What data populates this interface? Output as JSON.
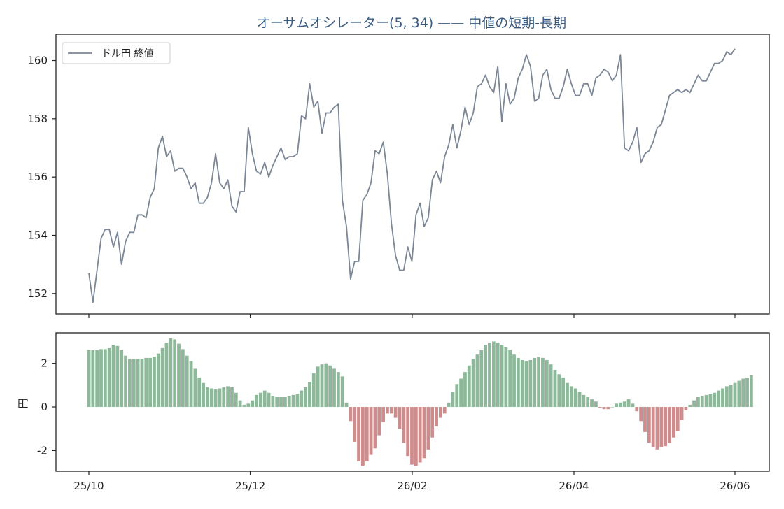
{
  "chart_data": [
    {
      "type": "line",
      "title": "オーサムオシレーター(5, 34) —— 中値の短期-長期",
      "legend": {
        "position": "top-left",
        "entries": [
          "ドル円 終値"
        ]
      },
      "ylim": [
        151.3,
        160.9
      ],
      "yticks": [
        "152",
        "154",
        "156",
        "158",
        "160"
      ],
      "series": [
        {
          "name": "ドル円 終値",
          "color": "#7b8696",
          "values": [
            152.7,
            151.7,
            152.8,
            153.9,
            154.2,
            154.2,
            153.6,
            154.1,
            153.0,
            153.8,
            154.1,
            154.1,
            154.7,
            154.7,
            154.6,
            155.3,
            155.6,
            157.0,
            157.4,
            156.7,
            156.9,
            156.2,
            156.3,
            156.3,
            156.0,
            155.6,
            155.8,
            155.1,
            155.1,
            155.3,
            155.8,
            156.8,
            155.8,
            155.6,
            155.9,
            155.0,
            154.8,
            155.5,
            155.5,
            157.7,
            156.8,
            156.2,
            156.1,
            156.5,
            156.0,
            156.4,
            156.7,
            157.0,
            156.6,
            156.7,
            156.7,
            156.8,
            158.1,
            158.0,
            159.2,
            158.4,
            158.6,
            157.5,
            158.2,
            158.2,
            158.4,
            158.5,
            155.2,
            154.3,
            152.5,
            153.1,
            153.1,
            155.2,
            155.4,
            155.8,
            156.9,
            156.8,
            157.2,
            156.1,
            154.4,
            153.3,
            152.8,
            152.8,
            153.6,
            153.1,
            154.7,
            155.1,
            154.3,
            154.6,
            155.9,
            156.2,
            155.8,
            156.7,
            157.1,
            157.8,
            157.0,
            157.6,
            158.4,
            157.8,
            158.2,
            159.1,
            159.2,
            159.5,
            159.1,
            158.9,
            159.8,
            157.9,
            159.2,
            158.5,
            158.7,
            159.4,
            159.7,
            160.2,
            159.8,
            158.6,
            158.7,
            159.5,
            159.7,
            159.0,
            158.7,
            158.7,
            159.1,
            159.7,
            159.2,
            158.8,
            158.8,
            159.2,
            159.2,
            158.8,
            159.4,
            159.5,
            159.7,
            159.6,
            159.3,
            159.5,
            160.2,
            157.0,
            156.9,
            157.2,
            157.7,
            156.5,
            156.8,
            156.9,
            157.2,
            157.7,
            157.8,
            158.3,
            158.8,
            158.9,
            159.0,
            158.9,
            159.0,
            158.9,
            159.2,
            159.5,
            159.3,
            159.3,
            159.6,
            159.9,
            159.9,
            160.0,
            160.3,
            160.2,
            160.4
          ]
        }
      ]
    },
    {
      "type": "bar",
      "ylabel": "円",
      "ylim": [
        -2.95,
        3.4
      ],
      "yticks": [
        "-2",
        "0",
        "2"
      ],
      "xticks": [
        "25/10",
        "25/12",
        "26/02",
        "26/04",
        "26/06"
      ],
      "colors": {
        "positive": "#8db89a",
        "negative": "#cf8c8c"
      },
      "series": [
        {
          "name": "",
          "values": [
            2.6,
            2.6,
            2.6,
            2.65,
            2.65,
            2.7,
            2.85,
            2.8,
            2.6,
            2.35,
            2.2,
            2.2,
            2.2,
            2.2,
            2.25,
            2.25,
            2.3,
            2.45,
            2.7,
            2.95,
            3.15,
            3.1,
            2.9,
            2.65,
            2.35,
            2.1,
            1.75,
            1.35,
            1.1,
            0.9,
            0.85,
            0.8,
            0.85,
            0.9,
            0.95,
            0.9,
            0.65,
            0.3,
            0.1,
            0.15,
            0.3,
            0.55,
            0.65,
            0.75,
            0.65,
            0.5,
            0.45,
            0.45,
            0.45,
            0.5,
            0.55,
            0.6,
            0.75,
            0.9,
            1.15,
            1.55,
            1.85,
            1.95,
            2.0,
            1.9,
            1.75,
            1.6,
            1.4,
            0.2,
            -0.65,
            -1.6,
            -2.5,
            -2.7,
            -2.5,
            -2.2,
            -1.9,
            -1.3,
            -0.7,
            -0.3,
            -0.3,
            -0.5,
            -1.0,
            -1.65,
            -2.25,
            -2.65,
            -2.7,
            -2.55,
            -2.35,
            -1.95,
            -1.4,
            -0.9,
            -0.5,
            -0.3,
            0.2,
            0.7,
            1.05,
            1.3,
            1.6,
            1.9,
            2.2,
            2.4,
            2.6,
            2.85,
            2.95,
            3.0,
            2.95,
            2.85,
            2.75,
            2.6,
            2.4,
            2.25,
            2.15,
            2.1,
            2.15,
            2.25,
            2.3,
            2.25,
            2.15,
            1.95,
            1.7,
            1.5,
            1.35,
            1.1,
            0.95,
            0.85,
            0.7,
            0.55,
            0.45,
            0.35,
            0.25,
            -0.05,
            -0.1,
            -0.1,
            0.0,
            0.15,
            0.2,
            0.25,
            0.35,
            0.15,
            -0.2,
            -0.65,
            -1.15,
            -1.65,
            -1.85,
            -1.95,
            -1.85,
            -1.8,
            -1.65,
            -1.4,
            -1.1,
            -0.6,
            -0.15,
            0.1,
            0.3,
            0.45,
            0.5,
            0.55,
            0.6,
            0.65,
            0.75,
            0.85,
            0.95,
            1.0,
            1.1,
            1.2,
            1.3,
            1.35,
            1.45
          ]
        }
      ]
    }
  ]
}
